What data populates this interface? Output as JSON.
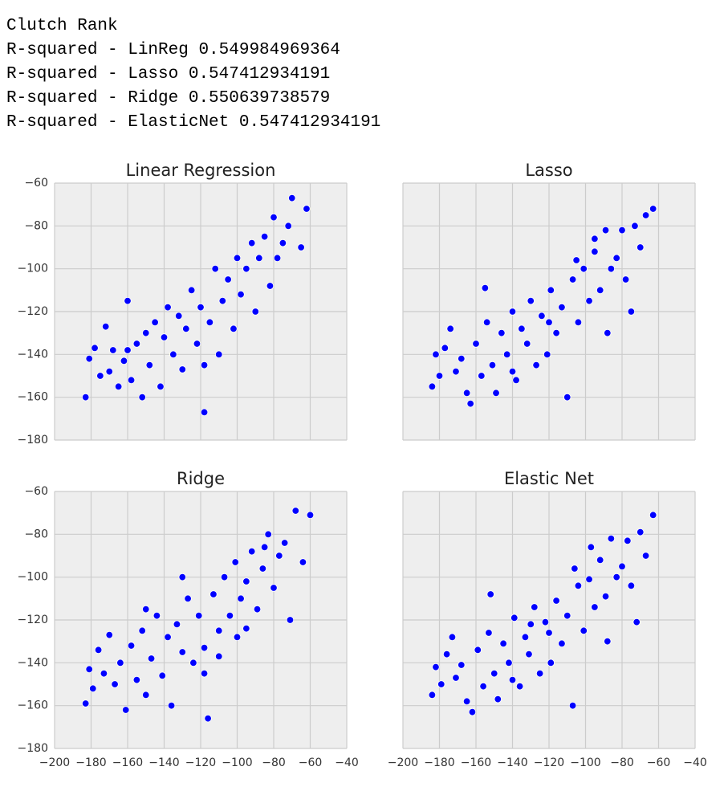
{
  "text_lines": [
    "Clutch Rank",
    "R-squared - LinReg 0.549984969364",
    "R-squared - Lasso 0.547412934191",
    "R-squared - Ridge 0.550639738579",
    "R-squared - ElasticNet 0.547412934191"
  ],
  "chart_data": [
    {
      "type": "scatter",
      "title": "Linear Regression",
      "color": "#0000ff",
      "grid": true,
      "x": [
        -183,
        -181,
        -178,
        -175,
        -172,
        -170,
        -168,
        -165,
        -162,
        -160,
        -158,
        -155,
        -152,
        -150,
        -148,
        -145,
        -142,
        -140,
        -138,
        -135,
        -132,
        -130,
        -128,
        -125,
        -122,
        -120,
        -118,
        -115,
        -112,
        -110,
        -108,
        -105,
        -102,
        -100,
        -98,
        -95,
        -92,
        -90,
        -88,
        -85,
        -82,
        -80,
        -78,
        -75,
        -72,
        -70,
        -65,
        -62,
        -118,
        -160
      ],
      "y": [
        -160,
        -142,
        -137,
        -150,
        -127,
        -148,
        -138,
        -155,
        -143,
        -115,
        -152,
        -135,
        -160,
        -130,
        -145,
        -125,
        -155,
        -132,
        -118,
        -140,
        -122,
        -147,
        -128,
        -110,
        -135,
        -118,
        -167,
        -125,
        -100,
        -140,
        -115,
        -105,
        -128,
        -95,
        -112,
        -100,
        -88,
        -120,
        -95,
        -85,
        -108,
        -76,
        -95,
        -88,
        -80,
        -67,
        -90,
        -72,
        -145,
        -138
      ],
      "xlim": [
        -200,
        -40
      ],
      "ylim": [
        -180,
        -60
      ],
      "xticks": [
        -200,
        -180,
        -160,
        -140,
        -120,
        -100,
        -80,
        -60,
        -40
      ],
      "yticks": [
        {
          "value": -60,
          "label": "−60"
        },
        {
          "value": -80,
          "label": "−80"
        },
        {
          "value": -100,
          "label": "−100"
        },
        {
          "value": -120,
          "label": "−120"
        },
        {
          "value": -140,
          "label": "−140"
        },
        {
          "value": -160,
          "label": "−160"
        },
        {
          "value": -180,
          "label": "−180"
        }
      ]
    },
    {
      "type": "scatter",
      "title": "Lasso",
      "color": "#0000ff",
      "grid": true,
      "x": [
        -184,
        -182,
        -180,
        -177,
        -174,
        -171,
        -168,
        -165,
        -163,
        -160,
        -157,
        -154,
        -151,
        -149,
        -146,
        -143,
        -140,
        -138,
        -135,
        -132,
        -130,
        -127,
        -124,
        -121,
        -119,
        -116,
        -113,
        -110,
        -107,
        -104,
        -101,
        -98,
        -95,
        -92,
        -89,
        -86,
        -83,
        -80,
        -78,
        -75,
        -73,
        -70,
        -67,
        -63,
        -120,
        -155,
        -105,
        -88,
        -140,
        -95
      ],
      "y": [
        -155,
        -140,
        -150,
        -137,
        -128,
        -148,
        -142,
        -158,
        -163,
        -135,
        -150,
        -125,
        -145,
        -158,
        -130,
        -140,
        -120,
        -152,
        -128,
        -135,
        -115,
        -145,
        -122,
        -140,
        -110,
        -130,
        -118,
        -160,
        -105,
        -125,
        -100,
        -115,
        -92,
        -110,
        -82,
        -100,
        -95,
        -82,
        -105,
        -120,
        -80,
        -90,
        -75,
        -72,
        -125,
        -109,
        -96,
        -130,
        -148,
        -86
      ],
      "xlim": [
        -200,
        -40
      ],
      "ylim": [
        -180,
        -60
      ],
      "xticks": [
        -200,
        -180,
        -160,
        -140,
        -120,
        -100,
        -80,
        -60,
        -40
      ],
      "yticks": [
        -60,
        -80,
        -100,
        -120,
        -140,
        -160,
        -180
      ]
    },
    {
      "type": "scatter",
      "title": "Ridge",
      "color": "#0000ff",
      "grid": true,
      "x": [
        -183,
        -181,
        -179,
        -176,
        -173,
        -170,
        -167,
        -164,
        -161,
        -158,
        -155,
        -152,
        -150,
        -147,
        -144,
        -141,
        -138,
        -136,
        -133,
        -130,
        -127,
        -124,
        -121,
        -118,
        -116,
        -113,
        -110,
        -107,
        -104,
        -101,
        -98,
        -95,
        -92,
        -89,
        -86,
        -83,
        -80,
        -77,
        -74,
        -71,
        -68,
        -64,
        -60,
        -118,
        -150,
        -100,
        -85,
        -130,
        -110,
        -95
      ],
      "y": [
        -159,
        -143,
        -152,
        -134,
        -145,
        -127,
        -150,
        -140,
        -162,
        -132,
        -148,
        -125,
        -155,
        -138,
        -118,
        -146,
        -128,
        -160,
        -122,
        -135,
        -110,
        -140,
        -118,
        -133,
        -166,
        -108,
        -125,
        -100,
        -118,
        -93,
        -110,
        -102,
        -88,
        -115,
        -96,
        -80,
        -105,
        -90,
        -84,
        -120,
        -69,
        -93,
        -71,
        -145,
        -115,
        -128,
        -86,
        -100,
        -137,
        -124
      ],
      "xlim": [
        -200,
        -40
      ],
      "ylim": [
        -180,
        -60
      ],
      "xticks": [
        {
          "value": -200,
          "label": "−200"
        },
        {
          "value": -180,
          "label": "−180"
        },
        {
          "value": -160,
          "label": "−160"
        },
        {
          "value": -140,
          "label": "−140"
        },
        {
          "value": -120,
          "label": "−120"
        },
        {
          "value": -100,
          "label": "−100"
        },
        {
          "value": -80,
          "label": "−80"
        },
        {
          "value": -60,
          "label": "−60"
        },
        {
          "value": -40,
          "label": "−40"
        }
      ],
      "yticks": [
        {
          "value": -60,
          "label": "−60"
        },
        {
          "value": -80,
          "label": "−80"
        },
        {
          "value": -100,
          "label": "−100"
        },
        {
          "value": -120,
          "label": "−120"
        },
        {
          "value": -140,
          "label": "−140"
        },
        {
          "value": -160,
          "label": "−160"
        },
        {
          "value": -180,
          "label": "−180"
        }
      ]
    },
    {
      "type": "scatter",
      "title": "Elastic Net",
      "color": "#0000ff",
      "grid": true,
      "x": [
        -184,
        -182,
        -179,
        -176,
        -173,
        -171,
        -168,
        -165,
        -162,
        -159,
        -156,
        -153,
        -150,
        -148,
        -145,
        -142,
        -139,
        -136,
        -133,
        -131,
        -128,
        -125,
        -122,
        -119,
        -116,
        -113,
        -110,
        -107,
        -104,
        -101,
        -98,
        -95,
        -92,
        -89,
        -86,
        -83,
        -80,
        -77,
        -75,
        -72,
        -70,
        -67,
        -63,
        -120,
        -152,
        -106,
        -88,
        -140,
        -97,
        -130
      ],
      "y": [
        -155,
        -142,
        -150,
        -136,
        -128,
        -147,
        -141,
        -158,
        -163,
        -134,
        -151,
        -126,
        -145,
        -157,
        -131,
        -140,
        -119,
        -151,
        -128,
        -136,
        -114,
        -145,
        -121,
        -140,
        -111,
        -131,
        -118,
        -160,
        -104,
        -125,
        -101,
        -114,
        -92,
        -109,
        -82,
        -100,
        -95,
        -83,
        -104,
        -121,
        -79,
        -90,
        -71,
        -126,
        -108,
        -96,
        -130,
        -148,
        -86,
        -122
      ],
      "xlim": [
        -200,
        -40
      ],
      "ylim": [
        -180,
        -60
      ],
      "xticks": [
        {
          "value": -200,
          "label": "−200"
        },
        {
          "value": -180,
          "label": "−180"
        },
        {
          "value": -160,
          "label": "−160"
        },
        {
          "value": -140,
          "label": "−140"
        },
        {
          "value": -120,
          "label": "−120"
        },
        {
          "value": -100,
          "label": "−100"
        },
        {
          "value": -80,
          "label": "−80"
        },
        {
          "value": -60,
          "label": "−60"
        },
        {
          "value": -40,
          "label": "−40"
        }
      ],
      "yticks": [
        -60,
        -80,
        -100,
        -120,
        -140,
        -160,
        -180
      ]
    }
  ]
}
